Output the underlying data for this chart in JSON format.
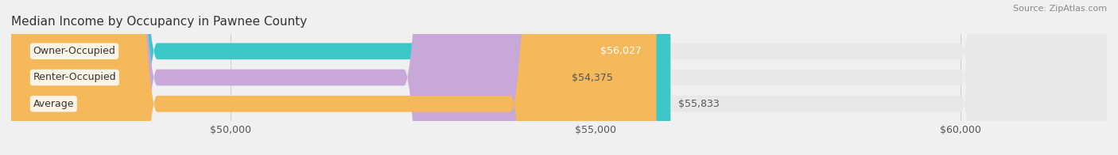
{
  "title": "Median Income by Occupancy in Pawnee County",
  "source": "Source: ZipAtlas.com",
  "categories": [
    "Owner-Occupied",
    "Renter-Occupied",
    "Average"
  ],
  "values": [
    56027,
    54375,
    55833
  ],
  "bar_colors": [
    "#3cc8c8",
    "#c8a8d8",
    "#f5b85a"
  ],
  "value_labels": [
    "$56,027",
    "$54,375",
    "$55,833"
  ],
  "label_colors": [
    "#ffffff",
    "#555555",
    "#555555"
  ],
  "xlim_min": 47000,
  "xlim_max": 62000,
  "xticks": [
    50000,
    55000,
    60000
  ],
  "xtick_labels": [
    "$50,000",
    "$55,000",
    "$60,000"
  ],
  "background_color": "#f0f0f0",
  "bar_bg_color": "#e8e8e8",
  "title_fontsize": 11,
  "source_fontsize": 8,
  "tick_fontsize": 9,
  "bar_label_fontsize": 9,
  "category_label_fontsize": 9
}
